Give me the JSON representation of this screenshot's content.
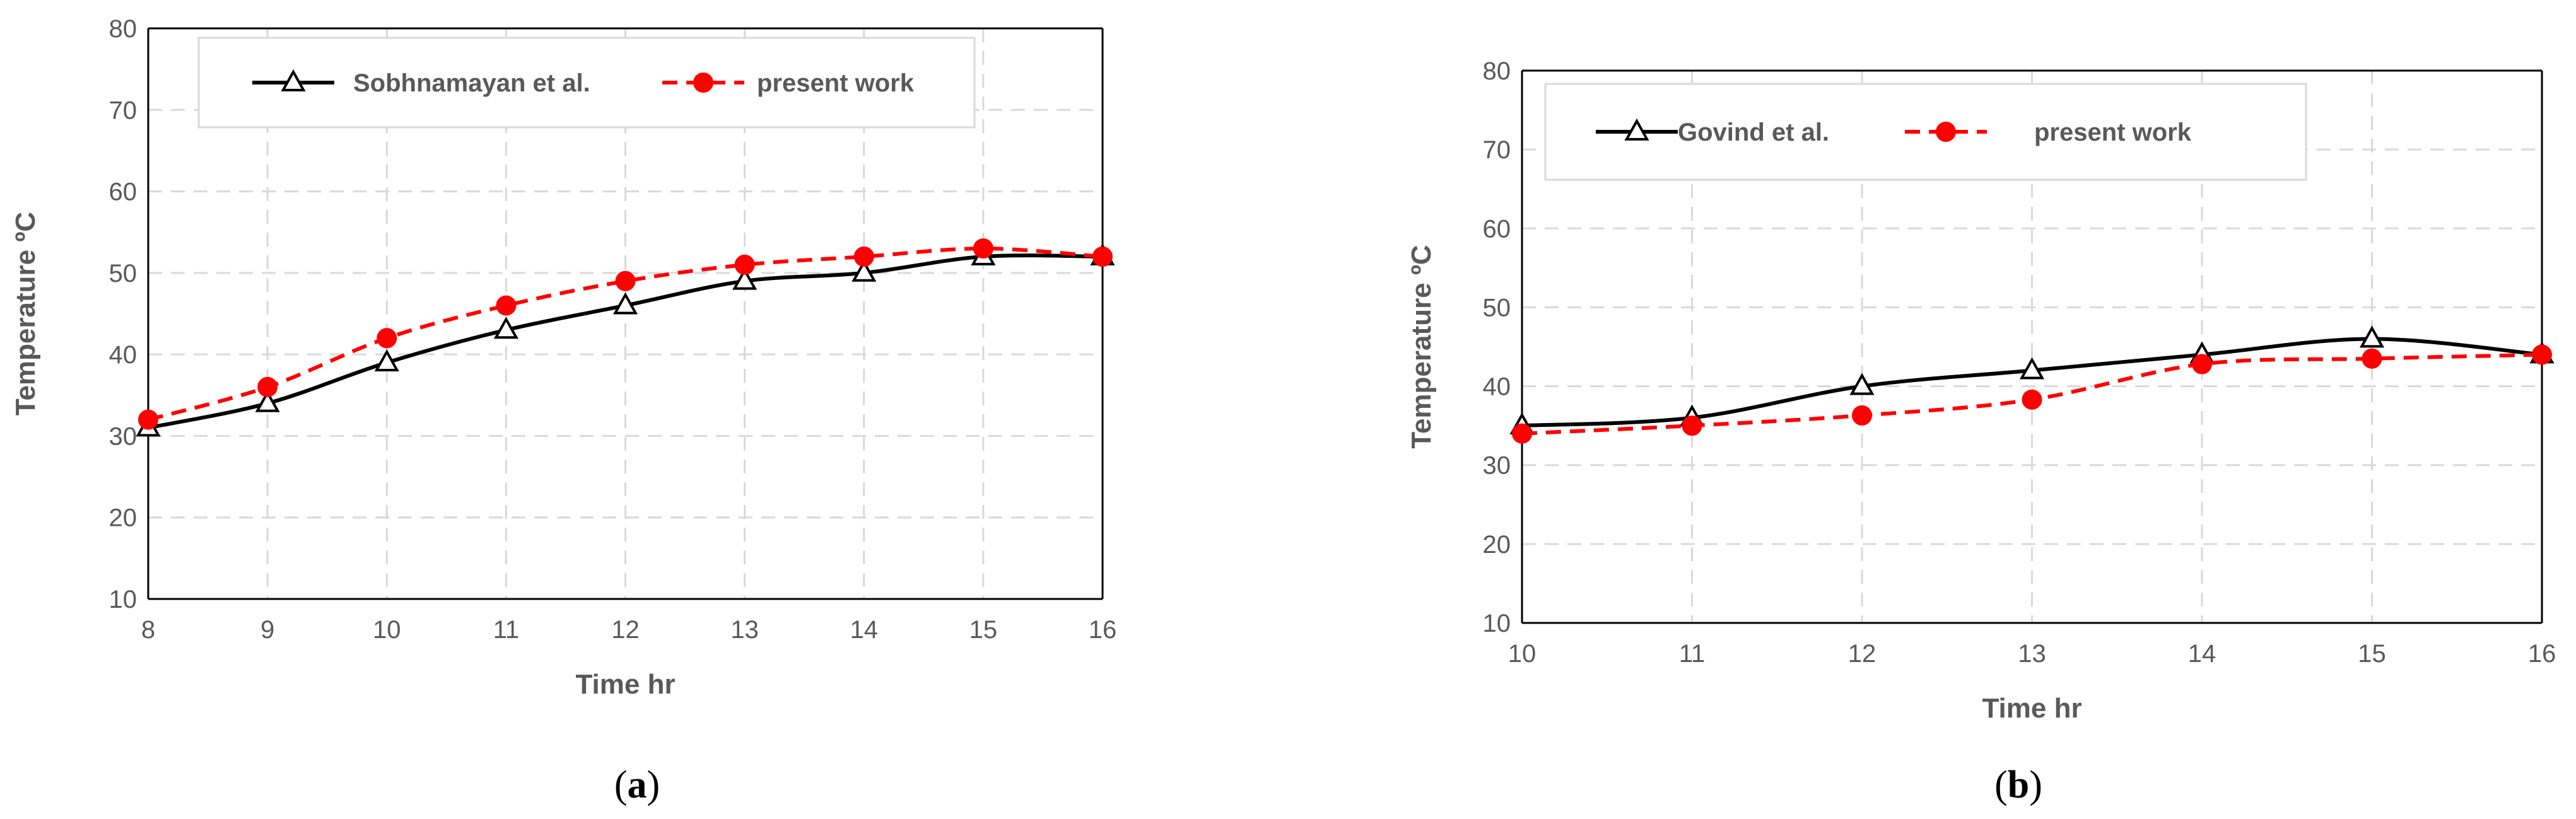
{
  "chart_data": [
    {
      "type": "line",
      "panel_label": "a",
      "xlabel": "Time hr",
      "ylabel": "Temperature ºC",
      "xlim": [
        8,
        16
      ],
      "ylim": [
        10,
        80
      ],
      "x_ticks": [
        8,
        9,
        10,
        11,
        12,
        13,
        14,
        15,
        16
      ],
      "y_ticks": [
        10,
        20,
        30,
        40,
        50,
        60,
        70,
        80
      ],
      "grid": true,
      "legend_position": "top",
      "series": [
        {
          "name": "Sobhnamayan et al.",
          "color": "#000000",
          "line_style": "solid",
          "marker": "open-triangle",
          "x": [
            8,
            9,
            10,
            11,
            12,
            13,
            14,
            15,
            16
          ],
          "y": [
            31,
            34,
            39,
            43,
            46,
            49,
            50,
            52,
            52
          ]
        },
        {
          "name": "present work",
          "color": "#ff0000",
          "line_style": "dashed",
          "marker": "filled-circle",
          "x": [
            8,
            9,
            10,
            11,
            12,
            13,
            14,
            15,
            16
          ],
          "y": [
            32,
            36,
            42,
            46,
            49,
            51,
            52,
            53,
            52
          ]
        }
      ]
    },
    {
      "type": "line",
      "panel_label": "b",
      "xlabel": "Time hr",
      "ylabel": "Temperature ºC",
      "xlim": [
        10,
        16
      ],
      "ylim": [
        10,
        80
      ],
      "x_ticks": [
        10,
        11,
        12,
        13,
        14,
        15,
        16
      ],
      "y_ticks": [
        10,
        20,
        30,
        40,
        50,
        60,
        70,
        80
      ],
      "grid": true,
      "legend_position": "top",
      "series": [
        {
          "name": "Govind et al.",
          "color": "#000000",
          "line_style": "solid",
          "marker": "open-triangle",
          "x": [
            10,
            11,
            12,
            13,
            14,
            15,
            16
          ],
          "y": [
            35,
            36,
            40,
            42,
            44,
            46,
            44
          ]
        },
        {
          "name": "present work",
          "color": "#ff0000",
          "line_style": "dashed",
          "marker": "filled-circle",
          "x": [
            10,
            11,
            12,
            13,
            14,
            15,
            16
          ],
          "y": [
            34,
            35,
            36.3,
            38.3,
            42.8,
            43.5,
            44
          ]
        }
      ]
    }
  ]
}
